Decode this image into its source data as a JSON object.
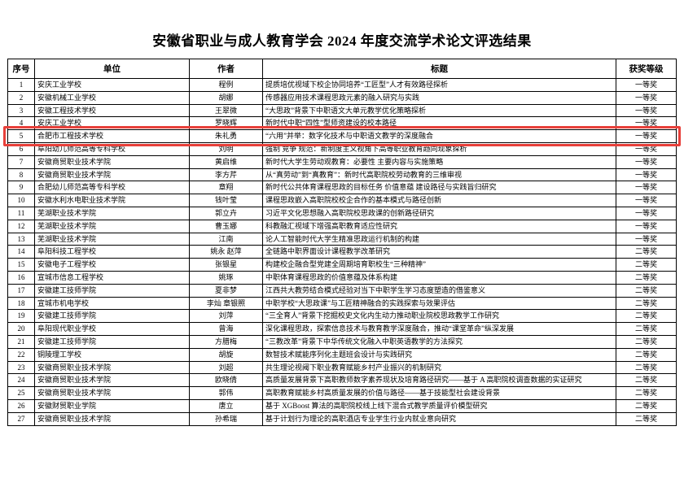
{
  "page": {
    "title": "安徽省职业与成人教育学会 2024 年度交流学术论文评选结果"
  },
  "table": {
    "headers": [
      "序号",
      "单位",
      "作者",
      "标题",
      "获奖等级"
    ],
    "highlighted_row": 5,
    "highlight_color": "#e8403a",
    "rows": [
      {
        "no": "1",
        "unit": "安庆工业学校",
        "author": "程例",
        "title": "提质培优视域下校企协同培养“工匠型”人才有效路径探析",
        "award": "一等奖"
      },
      {
        "no": "2",
        "unit": "安徽机械工业学校",
        "author": "胡娜",
        "title": "传感器应用技术课程思政元素的融入研究与实践",
        "award": "一等奖"
      },
      {
        "no": "3",
        "unit": "安徽工程技术学校",
        "author": "王翠微",
        "title": "“大思政”背景下中职语文大单元教学优化策略探析",
        "award": "一等奖"
      },
      {
        "no": "4",
        "unit": "安庆工业学校",
        "author": "罗晓辉",
        "title": "新时代中职“四性”型师资建设的校本路径",
        "award": "一等奖"
      },
      {
        "no": "5",
        "unit": "合肥市工程技术学校",
        "author": "朱礼勇",
        "title": "“六用”并举：数字化技术与中职语文教学的深度融合",
        "award": "一等奖"
      },
      {
        "no": "6",
        "unit": "阜阳幼儿师范高等专科学校",
        "author": "刘明",
        "title": "强制 竞争 规范：新制度主义视角下高等职业教育趋同现象探析",
        "award": "一等奖"
      },
      {
        "no": "7",
        "unit": "安徽商贸职业技术学院",
        "author": "黄启维",
        "title": "新时代大学生劳动观教育：必要性 主要内容与实施策略",
        "award": "一等奖"
      },
      {
        "no": "8",
        "unit": "安徽商贸职业技术学院",
        "author": "李方芹",
        "title": "从“真劳动”到“真教育”：新时代高职院校劳动教育的三维审视",
        "award": "一等奖"
      },
      {
        "no": "9",
        "unit": "合肥幼儿师范高等专科学校",
        "author": "章翔",
        "title": "新时代公共体育课程思政的目标任务 价值意蕴 建设路径与实践旨归研究",
        "award": "一等奖"
      },
      {
        "no": "10",
        "unit": "安徽水利水电职业技术学院",
        "author": "钱叶莹",
        "title": "课程思政嵌入高职院校校企合作的基本模式与路径创新",
        "award": "一等奖"
      },
      {
        "no": "11",
        "unit": "芜湖职业技术学院",
        "author": "郭立卉",
        "title": "习近平文化思想融入高职院校思政课的创新路径研究",
        "award": "一等奖"
      },
      {
        "no": "12",
        "unit": "芜湖职业技术学院",
        "author": "曹玉娜",
        "title": "科教融汇视域下增强高职教育适应性研究",
        "award": "一等奖"
      },
      {
        "no": "13",
        "unit": "芜湖职业技术学院",
        "author": "江南",
        "title": "论人工智能时代大学生精准思政运行机制的构建",
        "award": "一等奖"
      },
      {
        "no": "14",
        "unit": "阜阳科技工程学校",
        "author": "姚永 赵萍",
        "title": "全链路中职界面设计课程教学改革研究",
        "award": "二等奖"
      },
      {
        "no": "15",
        "unit": "安徽电子工程学校",
        "author": "张银星",
        "title": "构建校企融合型党建全周期培育职校生“三种精神”",
        "award": "二等奖"
      },
      {
        "no": "16",
        "unit": "宣城市信息工程学校",
        "author": "姚琢",
        "title": "中职体育课程思政的价值意蕴及体系构建",
        "award": "二等奖"
      },
      {
        "no": "17",
        "unit": "安徽建工技师学院",
        "author": "夏非梦",
        "title": "江西共大教劳结合模式经验对当下中职学生学习态度塑造的借鉴意义",
        "award": "二等奖"
      },
      {
        "no": "18",
        "unit": "宣城市机电学校",
        "author": "李灿 章银照",
        "title": "中职学校“大思政课”与工匠精神融合的实践探索与效果评估",
        "award": "二等奖"
      },
      {
        "no": "19",
        "unit": "安徽建工技师学院",
        "author": "刘萍",
        "title": "“三全育人”背景下挖掘校史文化内生动力推动职业院校思政教学工作研究",
        "award": "二等奖"
      },
      {
        "no": "20",
        "unit": "阜阳现代职业学校",
        "author": "曾海",
        "title": "深化课程思政，探索信息技术与教育教学深度融合，推动“课堂革命”纵深发展",
        "award": "二等奖"
      },
      {
        "no": "21",
        "unit": "安徽建工技师学院",
        "author": "方腊梅",
        "title": "“三教改革”背景下中华传统文化融入中职英语教学的方法探究",
        "award": "二等奖"
      },
      {
        "no": "22",
        "unit": "铜陵理工学校",
        "author": "胡旋",
        "title": "数智技术赋能序列化主题班会设计与实践研究",
        "award": "二等奖"
      },
      {
        "no": "23",
        "unit": "安徽商贸职业技术学院",
        "author": "刘超",
        "title": "共生理论视阈下职业教育赋能乡村产业振兴的机制研究",
        "award": "二等奖"
      },
      {
        "no": "24",
        "unit": "安徽商贸职业技术学院",
        "author": "欧晓倩",
        "title": "高质量发展背景下高职教师数字素养现状及培育路径研究——基于 A 高职院校调查数据的实证研究",
        "award": "二等奖"
      },
      {
        "no": "25",
        "unit": "安徽商贸职业技术学院",
        "author": "郭伟",
        "title": "高职教育赋能乡村高质量发展的价值与路径——基于技能型社会建设背景",
        "award": "二等奖"
      },
      {
        "no": "26",
        "unit": "安徽财贸职业学院",
        "author": "唐立",
        "title": "基于 XGBoost 算法的高职院校线上线下混合式教学质量评价模型研究",
        "award": "二等奖"
      },
      {
        "no": "27",
        "unit": "安徽商贸职业技术学院",
        "author": "孙希瑞",
        "title": "基于计划行为理论的高职酒店专业学生行业内就业意向研究",
        "award": "二等奖"
      }
    ]
  }
}
